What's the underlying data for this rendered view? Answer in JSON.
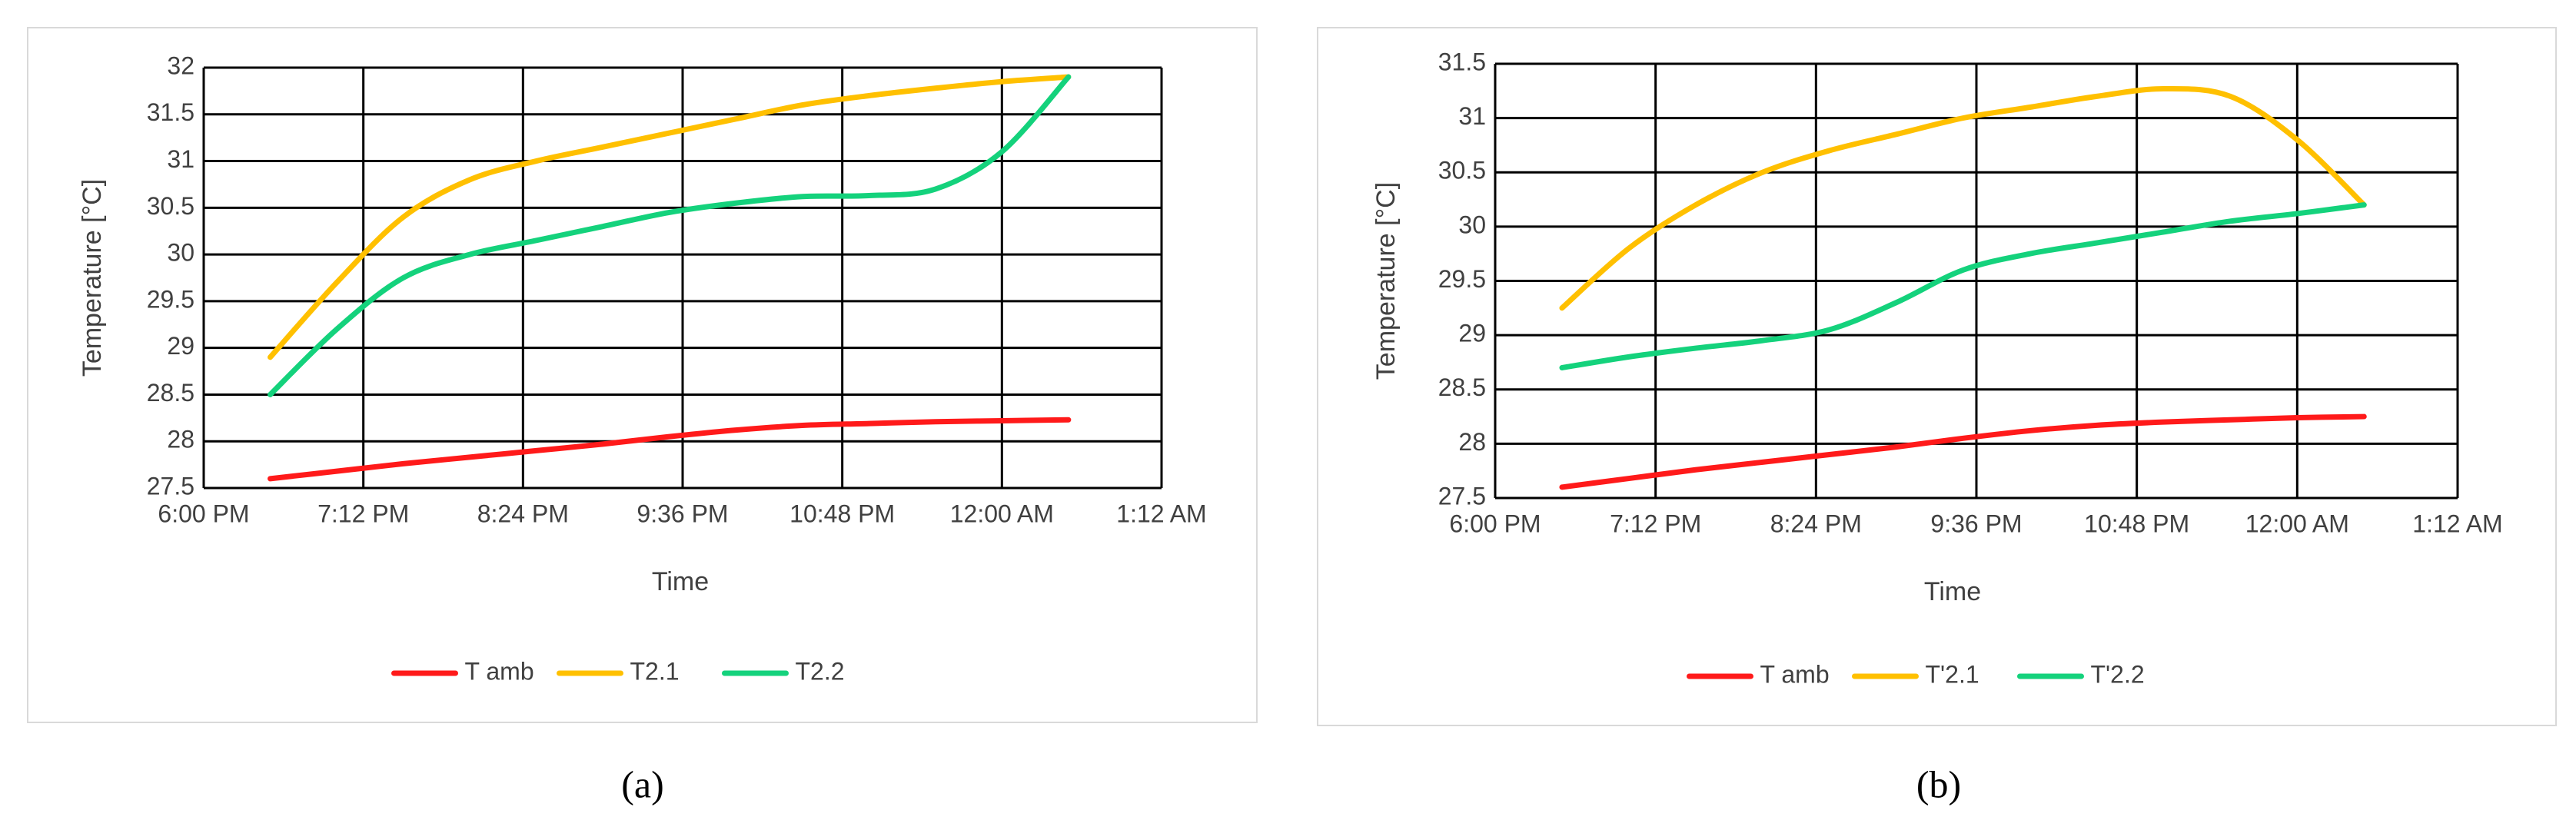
{
  "chart_data": [
    {
      "type": "line",
      "caption": "(a)",
      "x_label": "Time",
      "y_label": "Temperature [°C]",
      "x": [
        18.5,
        19,
        19.5,
        20,
        20.5,
        21,
        21.5,
        22,
        22.5,
        23,
        23.5,
        24,
        24.5
      ],
      "series": [
        {
          "name": "T amb",
          "color": "#ff1a1a",
          "values": [
            27.6,
            27.68,
            27.76,
            27.83,
            27.9,
            27.97,
            28.05,
            28.12,
            28.17,
            28.19,
            28.21,
            28.22,
            28.23
          ]
        },
        {
          "name": "T2.1",
          "color": "#ffc000",
          "values": [
            28.9,
            29.7,
            30.4,
            30.8,
            31.0,
            31.15,
            31.3,
            31.45,
            31.6,
            31.7,
            31.78,
            31.85,
            31.9
          ]
        },
        {
          "name": "T2.2",
          "color": "#14d27c",
          "values": [
            28.5,
            29.2,
            29.75,
            30.0,
            30.15,
            30.3,
            30.45,
            30.55,
            30.62,
            30.63,
            30.7,
            31.1,
            31.9
          ]
        }
      ],
      "xlim": [
        18,
        25.2
      ],
      "xticks": [
        {
          "value": 18,
          "label": "6:00 PM"
        },
        {
          "value": 19.2,
          "label": "7:12 PM"
        },
        {
          "value": 20.4,
          "label": "8:24 PM"
        },
        {
          "value": 21.6,
          "label": "9:36 PM"
        },
        {
          "value": 22.8,
          "label": "10:48 PM"
        },
        {
          "value": 24,
          "label": "12:00 AM"
        },
        {
          "value": 25.2,
          "label": "1:12 AM"
        }
      ],
      "ylim": [
        27.5,
        32
      ],
      "yticks": [
        27.5,
        28,
        28.5,
        29,
        29.5,
        30,
        30.5,
        31,
        31.5,
        32
      ],
      "grid": true,
      "legend": "bottom"
    },
    {
      "type": "line",
      "caption": "(b)",
      "x_label": "Time",
      "y_label": "Temperature  [°C]",
      "x": [
        18.5,
        19,
        19.5,
        20,
        20.5,
        21,
        21.5,
        22,
        22.5,
        23,
        23.5,
        24,
        24.5
      ],
      "series": [
        {
          "name": "T amb",
          "color": "#ff1a1a",
          "values": [
            27.6,
            27.68,
            27.76,
            27.83,
            27.9,
            27.97,
            28.05,
            28.12,
            28.17,
            28.2,
            28.22,
            28.24,
            28.25
          ]
        },
        {
          "name": "T'2.1",
          "color": "#ffc000",
          "values": [
            29.25,
            29.8,
            30.2,
            30.5,
            30.7,
            30.85,
            31.0,
            31.1,
            31.2,
            31.27,
            31.2,
            30.8,
            30.2
          ]
        },
        {
          "name": "T'2.2",
          "color": "#14d27c",
          "values": [
            28.7,
            28.8,
            28.88,
            28.95,
            29.05,
            29.3,
            29.6,
            29.75,
            29.85,
            29.95,
            30.05,
            30.12,
            30.2
          ]
        }
      ],
      "xlim": [
        18,
        25.2
      ],
      "xticks": [
        {
          "value": 18,
          "label": "6:00 PM"
        },
        {
          "value": 19.2,
          "label": "7:12 PM"
        },
        {
          "value": 20.4,
          "label": "8:24 PM"
        },
        {
          "value": 21.6,
          "label": "9:36 PM"
        },
        {
          "value": 22.8,
          "label": "10:48 PM"
        },
        {
          "value": 24,
          "label": "12:00 AM"
        },
        {
          "value": 25.2,
          "label": "1:12 AM"
        }
      ],
      "ylim": [
        27.5,
        31.5
      ],
      "yticks": [
        27.5,
        28,
        28.5,
        29,
        29.5,
        30,
        30.5,
        31,
        31.5
      ],
      "grid": true,
      "legend": "bottom"
    }
  ]
}
